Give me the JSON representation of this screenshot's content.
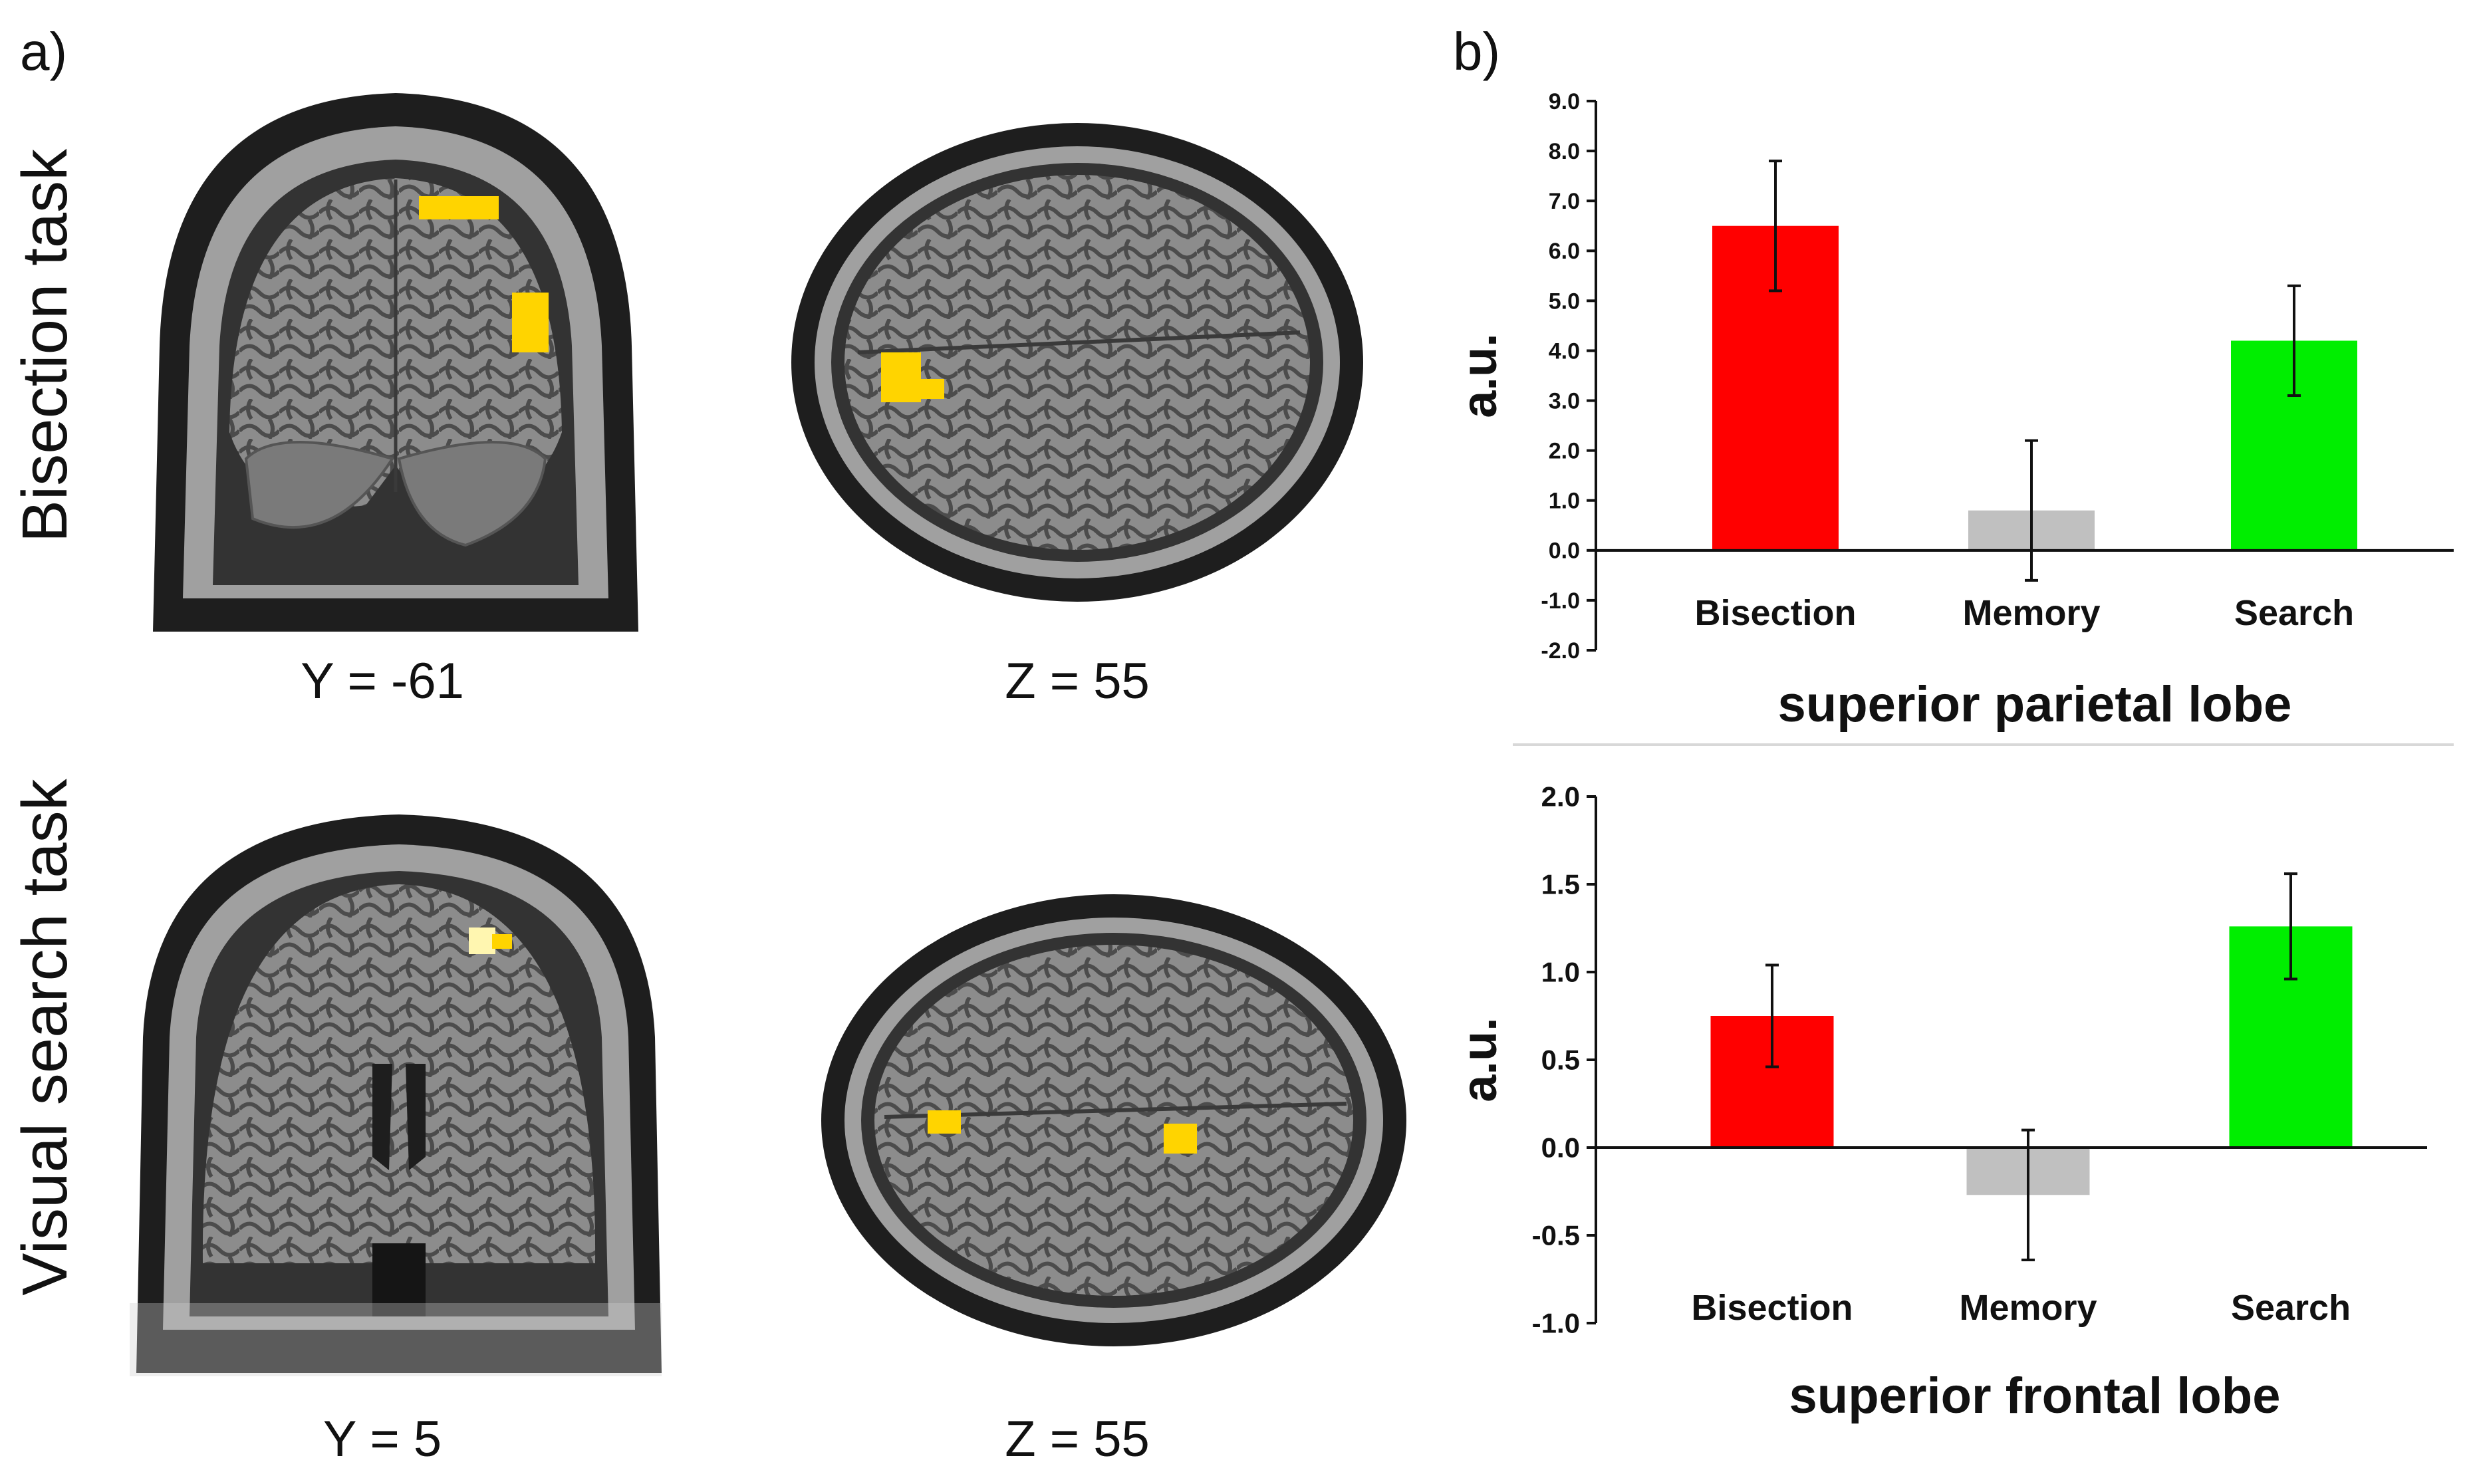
{
  "panels": {
    "a_label": "a)",
    "b_label": "b)"
  },
  "brain_rows": [
    {
      "label": "Bisection task",
      "images": [
        {
          "view": "coronal",
          "caption": "Y = -61"
        },
        {
          "view": "axial",
          "caption": "Z = 55"
        }
      ]
    },
    {
      "label": "Visual search task",
      "images": [
        {
          "view": "coronal",
          "caption": "Y = 5"
        },
        {
          "view": "axial",
          "caption": "Z = 55"
        }
      ]
    }
  ],
  "colors": {
    "bisection": "#ff0000",
    "memory": "#c0c0c0",
    "search": "#00ee00",
    "activation": "#ffd400",
    "brain": "#8a8a8a",
    "skull": "#3a3a3a"
  },
  "chart_data": [
    {
      "type": "bar",
      "title": "",
      "xlabel": "superior parietal lobe",
      "ylabel": "a.u.",
      "categories": [
        "Bisection",
        "Memory",
        "Search"
      ],
      "values": [
        6.5,
        0.8,
        4.2
      ],
      "errors": [
        1.3,
        1.4,
        1.1
      ],
      "ylim": [
        -2.0,
        9.0
      ],
      "yticks": [
        "9.0",
        "8.0",
        "7.0",
        "6.0",
        "5.0",
        "4.0",
        "3.0",
        "2.0",
        "1.0",
        "0.0",
        "-1.0",
        "-2.0"
      ],
      "grid": false
    },
    {
      "type": "bar",
      "title": "",
      "xlabel": "superior frontal lobe",
      "ylabel": "a.u.",
      "categories": [
        "Bisection",
        "Memory",
        "Search"
      ],
      "values": [
        0.75,
        -0.27,
        1.26
      ],
      "errors": [
        0.29,
        0.37,
        0.3
      ],
      "ylim": [
        -1.0,
        2.0
      ],
      "yticks": [
        "2.0",
        "1.5",
        "1.0",
        "0.5",
        "0.0",
        "-0.5",
        "-1.0"
      ],
      "grid": false
    }
  ]
}
